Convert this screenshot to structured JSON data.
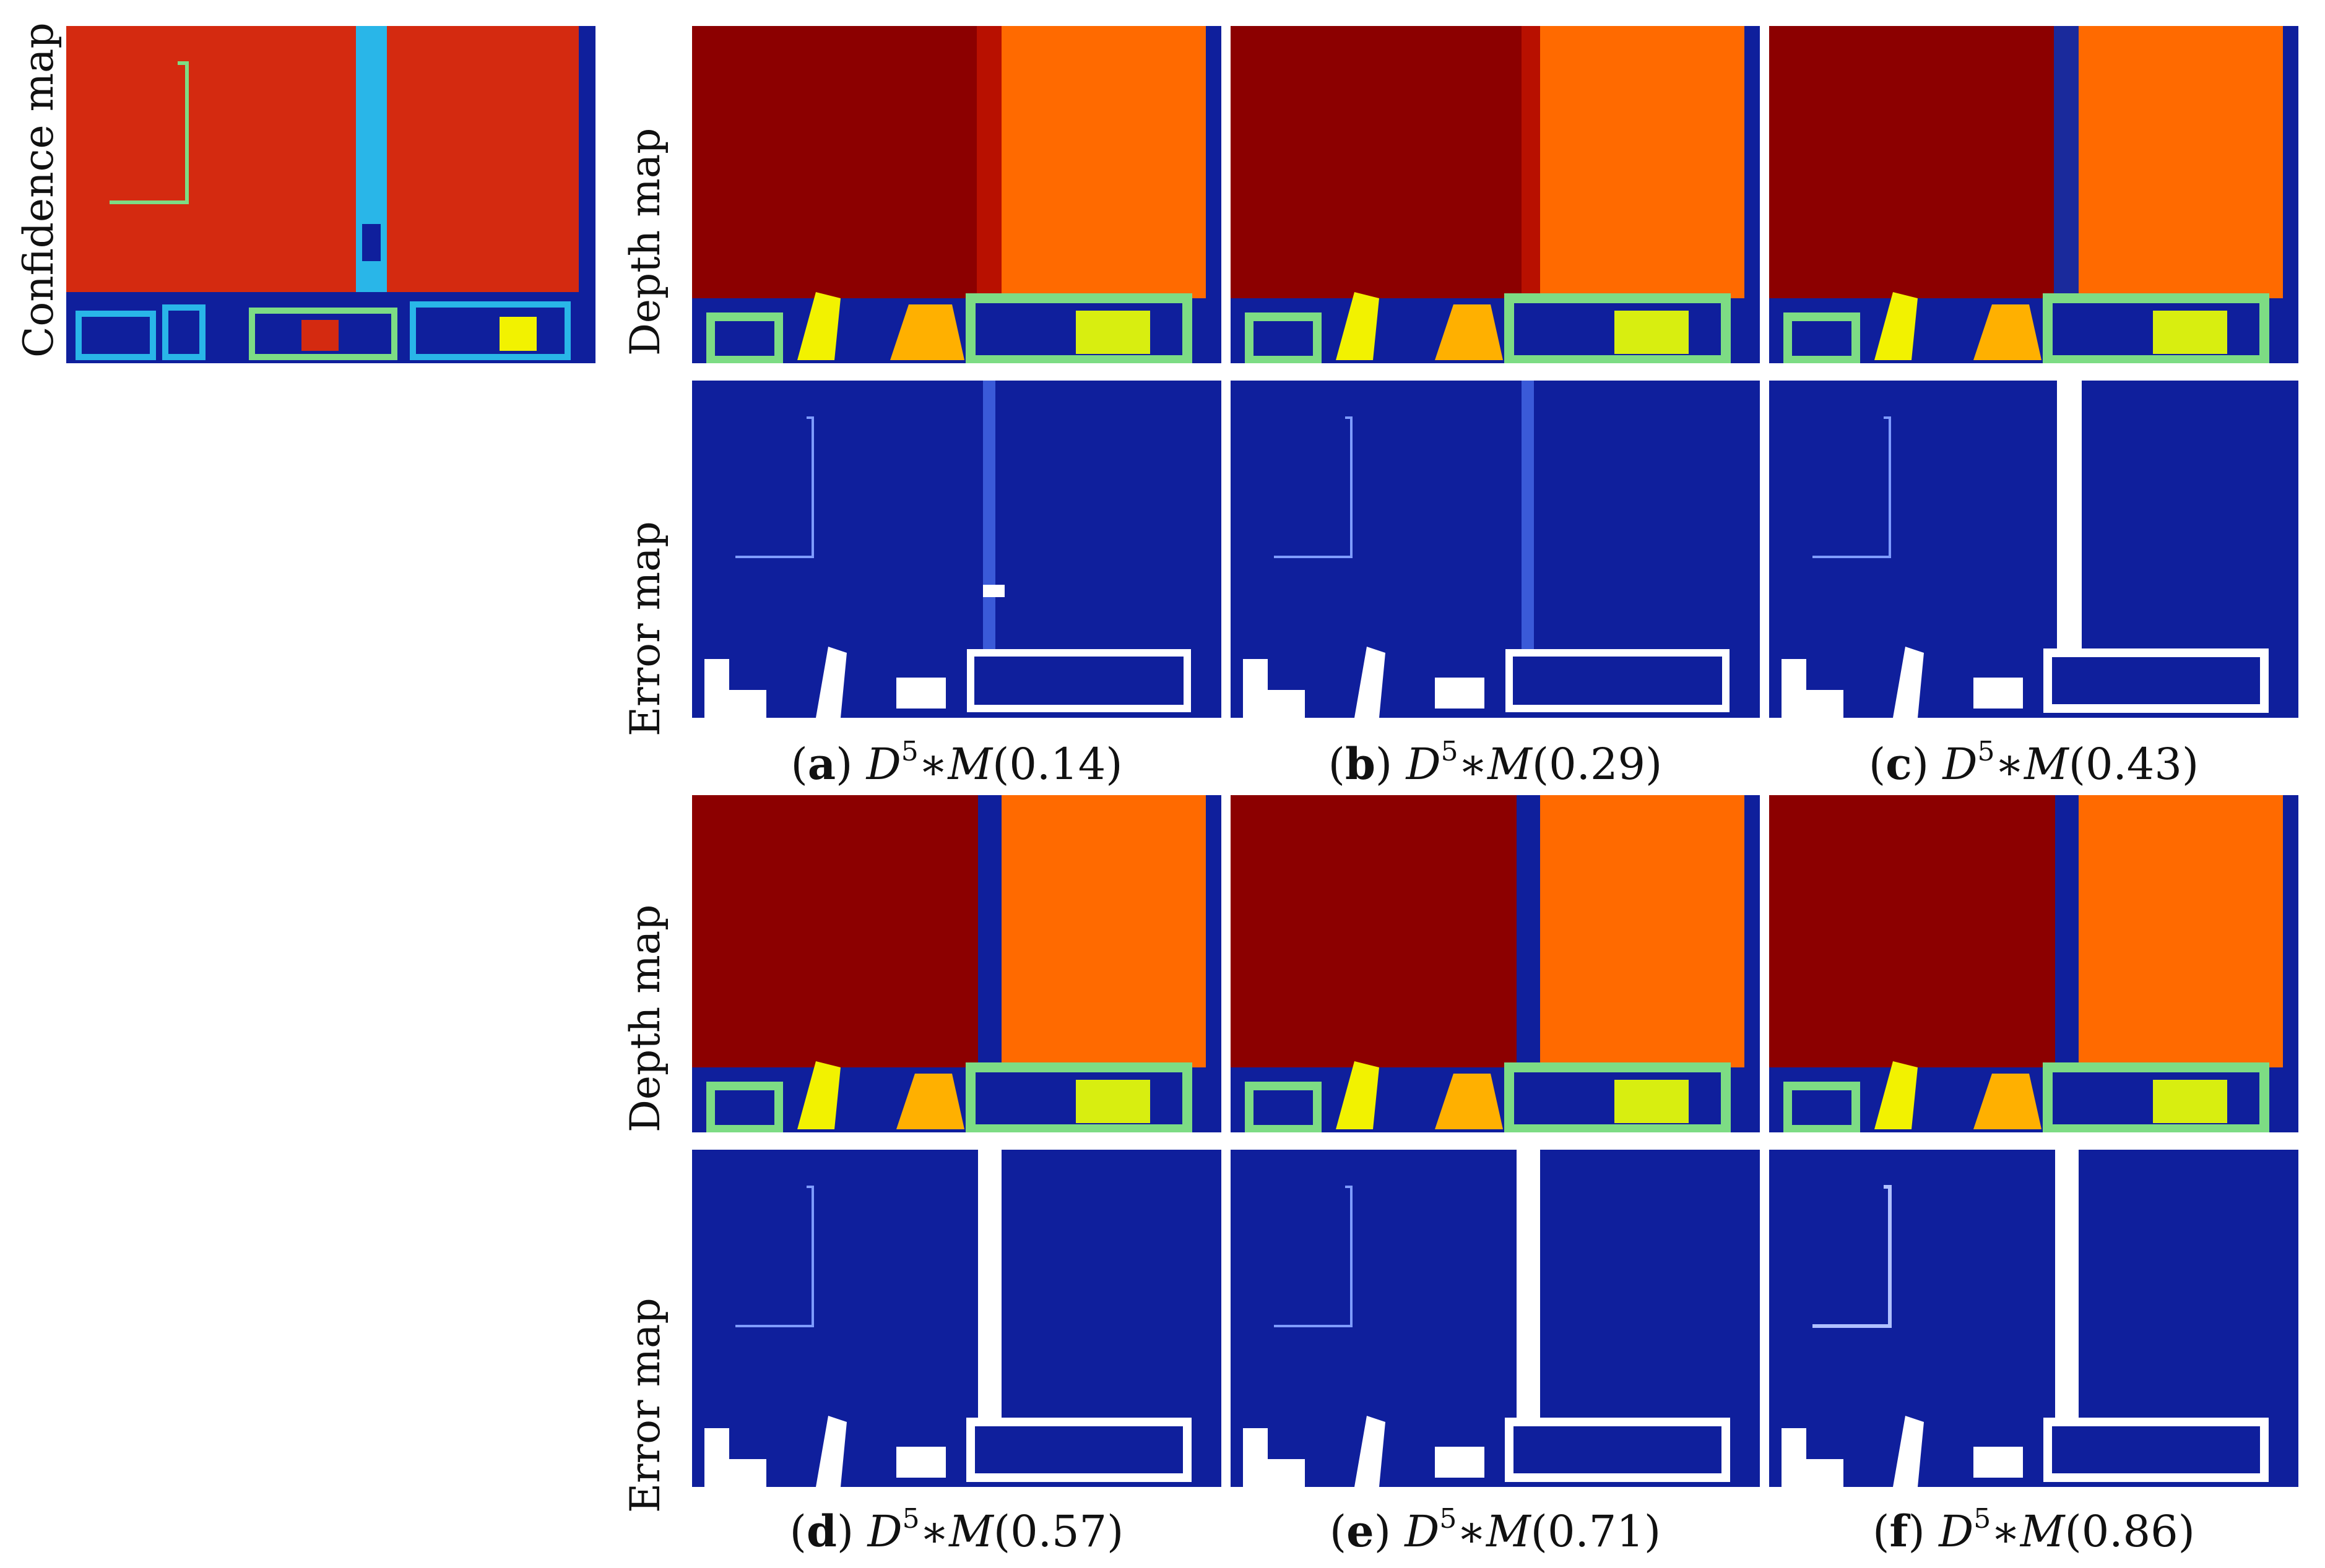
{
  "figure": {
    "row_labels": {
      "confidence": "Confidence map",
      "depth": "Depth map",
      "error": "Error map"
    },
    "subfigures": [
      {
        "letter": "a",
        "base": "D",
        "exp": "5",
        "op": "∗M",
        "value": "(0.14)"
      },
      {
        "letter": "b",
        "base": "D",
        "exp": "5",
        "op": "∗M",
        "value": "(0.29)"
      },
      {
        "letter": "c",
        "base": "D",
        "exp": "5",
        "op": "∗M",
        "value": "(0.43)"
      },
      {
        "letter": "d",
        "base": "D",
        "exp": "5",
        "op": "∗M",
        "value": "(0.57)"
      },
      {
        "letter": "e",
        "base": "D",
        "exp": "5",
        "op": "∗M",
        "value": "(0.71)"
      },
      {
        "letter": "f",
        "base": "D",
        "exp": "5",
        "op": "∗M",
        "value": "(0.86)"
      }
    ],
    "colors": {
      "dark_red": "#8c0000",
      "orange": "#ff6a00",
      "navy": "#0f1f9c",
      "cyan": "#29b6e8",
      "green": "#7ddc84",
      "yellow": "#f2f200",
      "white": "#ffffff",
      "conf_red": "#d42a10"
    }
  }
}
